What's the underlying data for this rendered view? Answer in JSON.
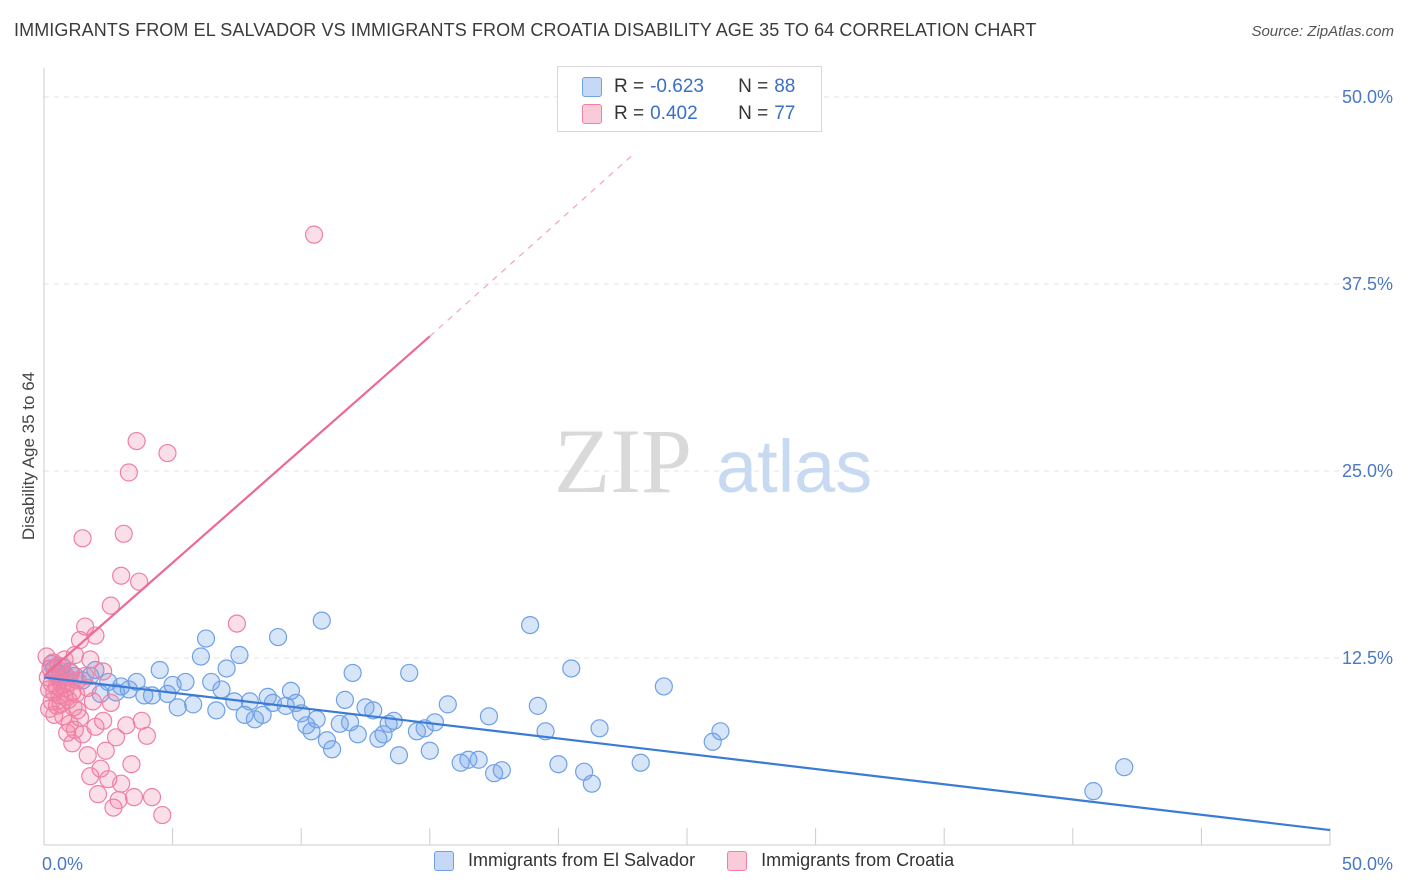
{
  "header": {
    "title": "IMMIGRANTS FROM EL SALVADOR VS IMMIGRANTS FROM CROATIA DISABILITY AGE 35 TO 64 CORRELATION CHART",
    "source": "Source: ZipAtlas.com"
  },
  "watermark": {
    "zip": "ZIP",
    "atlas": "atlas"
  },
  "legend": {
    "rows": [
      {
        "r_label": "R =",
        "r_value": "-0.623",
        "n_label": "N =",
        "n_value": "88",
        "color": "#6fa0e6"
      },
      {
        "r_label": "R =",
        "r_value": "0.402",
        "n_label": "N =",
        "n_value": "77",
        "color": "#f07fa3"
      }
    ]
  },
  "chart_data": {
    "type": "scatter",
    "title": "IMMIGRANTS FROM EL SALVADOR VS IMMIGRANTS FROM CROATIA DISABILITY AGE 35 TO 64 CORRELATION CHART",
    "xlabel": "",
    "ylabel": "Disability Age 35 to 64",
    "xlim": [
      0,
      50
    ],
    "ylim": [
      0,
      50
    ],
    "x_ticks": [
      "0.0%",
      "50.0%"
    ],
    "y_ticks": [
      {
        "value": 12.5,
        "label": "12.5%"
      },
      {
        "value": 25.0,
        "label": "25.0%"
      },
      {
        "value": 37.5,
        "label": "37.5%"
      },
      {
        "value": 50.0,
        "label": "50.0%"
      }
    ],
    "grid": true,
    "legend_position": "top-center",
    "series": [
      {
        "name": "Immigrants from El Salvador",
        "color": "#6fa0e6",
        "trend": {
          "x": [
            0,
            50
          ],
          "y": [
            11.2,
            1.0
          ]
        },
        "points": [
          [
            0.3,
            12.1
          ],
          [
            0.4,
            11.8
          ],
          [
            0.5,
            11.5
          ],
          [
            0.6,
            11.2
          ],
          [
            0.7,
            11.9
          ],
          [
            0.8,
            11.4
          ],
          [
            1.0,
            11.6
          ],
          [
            1.2,
            11.3
          ],
          [
            1.5,
            11.0
          ],
          [
            1.8,
            11.3
          ],
          [
            2.0,
            11.7
          ],
          [
            2.2,
            10.1
          ],
          [
            2.5,
            10.9
          ],
          [
            2.8,
            10.2
          ],
          [
            3.0,
            10.6
          ],
          [
            3.3,
            10.4
          ],
          [
            3.6,
            10.9
          ],
          [
            3.9,
            10.0
          ],
          [
            4.2,
            10.0
          ],
          [
            4.5,
            11.7
          ],
          [
            4.8,
            10.1
          ],
          [
            5.0,
            10.7
          ],
          [
            5.2,
            9.2
          ],
          [
            5.5,
            10.9
          ],
          [
            5.8,
            9.4
          ],
          [
            6.1,
            12.6
          ],
          [
            6.3,
            13.8
          ],
          [
            6.5,
            10.9
          ],
          [
            6.7,
            9.0
          ],
          [
            6.9,
            10.4
          ],
          [
            7.1,
            11.8
          ],
          [
            7.4,
            9.6
          ],
          [
            7.6,
            12.7
          ],
          [
            7.8,
            8.7
          ],
          [
            8.0,
            9.6
          ],
          [
            8.2,
            8.4
          ],
          [
            8.5,
            8.7
          ],
          [
            8.7,
            9.9
          ],
          [
            8.9,
            9.5
          ],
          [
            9.1,
            13.9
          ],
          [
            9.4,
            9.3
          ],
          [
            9.6,
            10.3
          ],
          [
            9.8,
            9.5
          ],
          [
            10.0,
            8.8
          ],
          [
            10.2,
            8.0
          ],
          [
            10.4,
            7.6
          ],
          [
            10.6,
            8.4
          ],
          [
            10.8,
            15.0
          ],
          [
            11.0,
            7.0
          ],
          [
            11.2,
            6.4
          ],
          [
            11.5,
            8.1
          ],
          [
            11.7,
            9.7
          ],
          [
            11.9,
            8.2
          ],
          [
            12.0,
            11.5
          ],
          [
            12.2,
            7.4
          ],
          [
            12.5,
            9.2
          ],
          [
            12.8,
            9.0
          ],
          [
            13.0,
            7.1
          ],
          [
            13.2,
            7.4
          ],
          [
            13.4,
            8.1
          ],
          [
            13.6,
            8.3
          ],
          [
            13.8,
            6.0
          ],
          [
            14.2,
            11.5
          ],
          [
            14.5,
            7.6
          ],
          [
            14.8,
            7.8
          ],
          [
            15.0,
            6.3
          ],
          [
            15.2,
            8.2
          ],
          [
            15.7,
            9.4
          ],
          [
            16.2,
            5.5
          ],
          [
            16.5,
            5.7
          ],
          [
            16.9,
            5.7
          ],
          [
            17.3,
            8.6
          ],
          [
            17.5,
            4.8
          ],
          [
            17.8,
            5.0
          ],
          [
            18.9,
            14.7
          ],
          [
            19.2,
            9.3
          ],
          [
            19.5,
            7.6
          ],
          [
            20.0,
            5.4
          ],
          [
            20.5,
            11.8
          ],
          [
            21.0,
            4.9
          ],
          [
            21.3,
            4.1
          ],
          [
            21.6,
            7.8
          ],
          [
            23.2,
            5.5
          ],
          [
            24.1,
            10.6
          ],
          [
            26.0,
            6.9
          ],
          [
            26.3,
            7.6
          ],
          [
            40.8,
            3.6
          ],
          [
            42.0,
            5.2
          ]
        ]
      },
      {
        "name": "Immigrants from Croatia",
        "color": "#f07fa3",
        "trend": {
          "x": [
            0,
            15
          ],
          "y": [
            11.3,
            34.0
          ],
          "dashed_to": {
            "x": 23,
            "y": 46.3
          }
        },
        "points": [
          [
            0.1,
            12.6
          ],
          [
            0.15,
            11.2
          ],
          [
            0.2,
            10.4
          ],
          [
            0.2,
            9.1
          ],
          [
            0.25,
            11.8
          ],
          [
            0.3,
            10.8
          ],
          [
            0.3,
            9.6
          ],
          [
            0.35,
            12.2
          ],
          [
            0.4,
            10.2
          ],
          [
            0.4,
            8.7
          ],
          [
            0.45,
            11.4
          ],
          [
            0.5,
            10.6
          ],
          [
            0.5,
            9.3
          ],
          [
            0.55,
            12.0
          ],
          [
            0.6,
            10.0
          ],
          [
            0.6,
            11.0
          ],
          [
            0.65,
            9.4
          ],
          [
            0.7,
            11.6
          ],
          [
            0.7,
            10.7
          ],
          [
            0.75,
            8.6
          ],
          [
            0.8,
            12.4
          ],
          [
            0.8,
            9.9
          ],
          [
            0.85,
            10.5
          ],
          [
            0.9,
            11.2
          ],
          [
            0.9,
            7.5
          ],
          [
            0.95,
            9.7
          ],
          [
            1.0,
            10.9
          ],
          [
            1.0,
            8.1
          ],
          [
            1.05,
            11.5
          ],
          [
            1.1,
            10.2
          ],
          [
            1.1,
            6.8
          ],
          [
            1.15,
            9.2
          ],
          [
            1.2,
            12.7
          ],
          [
            1.2,
            7.7
          ],
          [
            1.25,
            10.1
          ],
          [
            1.3,
            11.0
          ],
          [
            1.3,
            9.0
          ],
          [
            1.4,
            13.7
          ],
          [
            1.4,
            8.5
          ],
          [
            1.5,
            20.5
          ],
          [
            1.5,
            7.4
          ],
          [
            1.6,
            14.6
          ],
          [
            1.6,
            11.3
          ],
          [
            1.7,
            10.5
          ],
          [
            1.7,
            6.0
          ],
          [
            1.8,
            12.4
          ],
          [
            1.8,
            4.6
          ],
          [
            1.9,
            9.6
          ],
          [
            2.0,
            7.9
          ],
          [
            2.0,
            14.0
          ],
          [
            2.1,
            3.4
          ],
          [
            2.2,
            5.1
          ],
          [
            2.3,
            8.3
          ],
          [
            2.3,
            11.6
          ],
          [
            2.4,
            6.3
          ],
          [
            2.5,
            4.4
          ],
          [
            2.6,
            9.5
          ],
          [
            2.6,
            16.0
          ],
          [
            2.7,
            2.5
          ],
          [
            2.8,
            7.2
          ],
          [
            2.9,
            3.0
          ],
          [
            3.0,
            4.1
          ],
          [
            3.0,
            18.0
          ],
          [
            3.1,
            20.8
          ],
          [
            3.2,
            8.0
          ],
          [
            3.3,
            24.9
          ],
          [
            3.4,
            5.4
          ],
          [
            3.5,
            3.2
          ],
          [
            3.6,
            27.0
          ],
          [
            3.7,
            17.6
          ],
          [
            3.8,
            8.3
          ],
          [
            4.0,
            7.3
          ],
          [
            4.2,
            3.2
          ],
          [
            4.6,
            2.0
          ],
          [
            4.8,
            26.2
          ],
          [
            7.5,
            14.8
          ],
          [
            10.5,
            40.8
          ]
        ]
      }
    ]
  },
  "bottom_legend": {
    "items": [
      {
        "label": "Immigrants from El Salvador",
        "color": "#6fa0e6"
      },
      {
        "label": "Immigrants from Croatia",
        "color": "#f07fa3"
      }
    ]
  }
}
